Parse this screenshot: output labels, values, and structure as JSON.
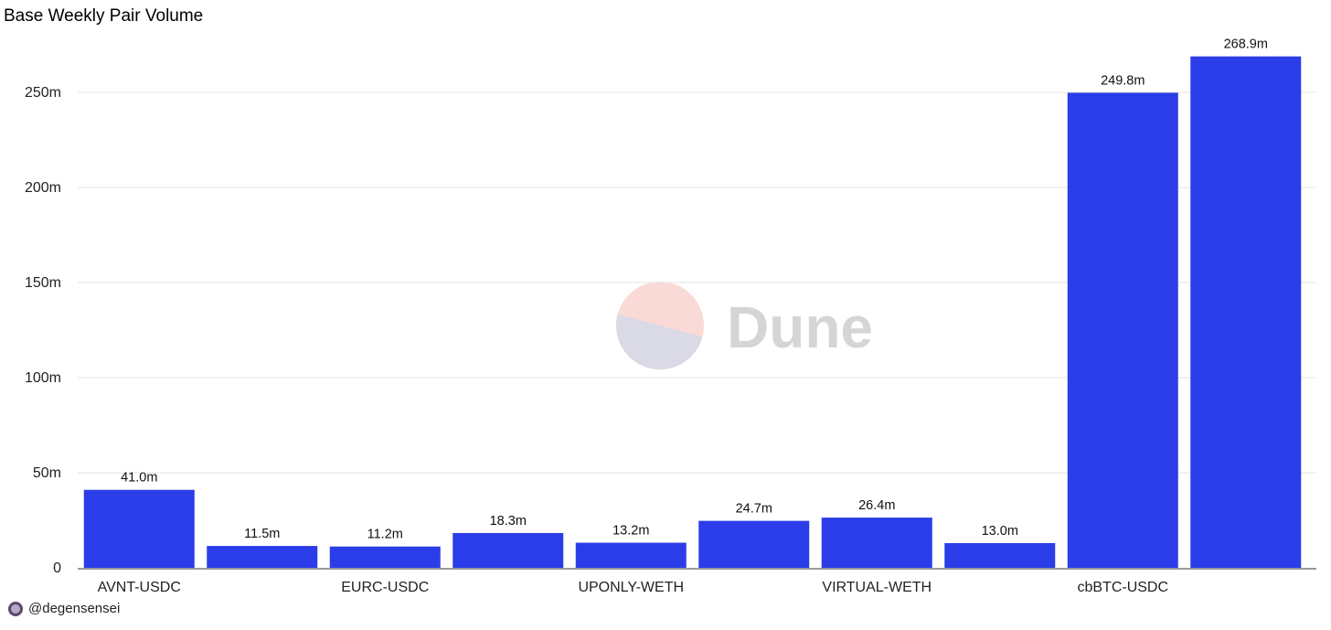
{
  "title": "Base Weekly Pair Volume",
  "footer": {
    "handle": "@degensensei"
  },
  "watermark": {
    "text": "Dune"
  },
  "colors": {
    "bar": "#2b3de8",
    "grid": "#e6e6e6"
  },
  "chart_data": {
    "type": "bar",
    "title": "Base Weekly Pair Volume",
    "xlabel": "",
    "ylabel": "",
    "ylim": [
      0,
      275000000
    ],
    "yticks": [
      0,
      50000000,
      100000000,
      150000000,
      200000000,
      250000000
    ],
    "ytick_labels": [
      "0",
      "50m",
      "100m",
      "150m",
      "200m",
      "250m"
    ],
    "categories": [
      "AVNT-USDC",
      "",
      "EURC-USDC",
      "",
      "UPONLY-WETH",
      "",
      "VIRTUAL-WETH",
      "",
      "cbBTC-USDC",
      ""
    ],
    "values": [
      41000000,
      11500000,
      11200000,
      18300000,
      13200000,
      24700000,
      26400000,
      13000000,
      249800000,
      268900000
    ],
    "data_labels": [
      "41.0m",
      "11.5m",
      "11.2m",
      "18.3m",
      "13.2m",
      "24.7m",
      "26.4m",
      "13.0m",
      "249.8m",
      "268.9m"
    ],
    "grid": true,
    "legend": "none"
  }
}
